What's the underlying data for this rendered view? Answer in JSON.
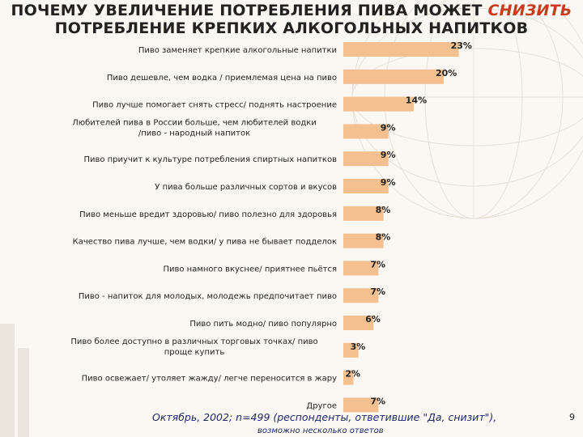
{
  "title": {
    "line1_prefix": "ПОЧЕМУ УВЕЛИЧЕНИЕ ПОТРЕБЛЕНИЯ ПИВА МОЖЕТ ",
    "line1_accent": "СНИЗИТЬ",
    "line2": "ПОТРЕБЛЕНИЕ КРЕПКИХ АЛКОГОЛЬНЫХ НАПИТКОВ"
  },
  "footnote": "Октябрь, 2002; n=499 (респонденты, ответившие \"Да, снизит\"),",
  "footnote2": "возможно несколько ответов",
  "page_number": "9",
  "colors": {
    "bar": "#f5c08f",
    "accent": "#c83c1e",
    "footnote": "#1f2a6b"
  },
  "chart_data": {
    "type": "bar",
    "orientation": "horizontal",
    "unit": "%",
    "xlim": [
      0,
      23
    ],
    "categories": [
      [
        "Пиво заменяет крепкие алкогольные напитки"
      ],
      [
        "Пиво дешевле, чем водка / приемлемая цена на пиво"
      ],
      [
        "Пиво лучше помогает снять стресс/ поднять настроение"
      ],
      [
        "Любителей пива в России больше, чем любителей водки",
        "/пиво - народный напиток"
      ],
      [
        "Пиво приучит к культуре потребления спиртных напитков"
      ],
      [
        "У пива больше различных сортов и вкусов"
      ],
      [
        "Пиво меньше вредит здоровью/ пиво полезно для здоровья"
      ],
      [
        "Качество пива лучше, чем водки/ у пива не бывает подделок"
      ],
      [
        "Пиво намного вкуснее/ приятнее пьётся"
      ],
      [
        "Пиво - напиток для молодых, молодежь предпочитает пиво"
      ],
      [
        "Пиво пить модно/ пиво популярно"
      ],
      [
        "Пиво более доступно в различных торговых точках/ пиво",
        "проще купить"
      ],
      [
        "Пиво освежает/ утоляет жажду/ легче переносится в жару"
      ],
      [
        "Другое"
      ]
    ],
    "values": [
      23,
      20,
      14,
      9,
      9,
      9,
      8,
      8,
      7,
      7,
      6,
      3,
      2,
      7
    ],
    "value_labels": [
      "23%",
      "20%",
      "14%",
      "9%",
      "9%",
      "9%",
      "8%",
      "8%",
      "7%",
      "7%",
      "6%",
      "3%",
      "2%",
      "7%"
    ]
  }
}
